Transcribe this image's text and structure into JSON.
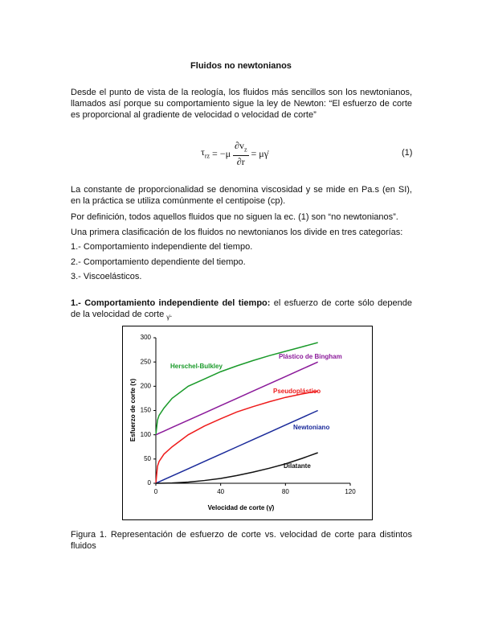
{
  "title": "Fluidos no newtonianos",
  "paragraph_1": "Desde el punto de vista de la reología, los fluidos más sencillos son los newtonianos, llamados así porque su comportamiento sigue la ley de Newton: “El esfuerzo de corte es proporcional al gradiente de velocidad o velocidad de corte”",
  "equation": {
    "lhs": "τ",
    "lhs_sub": "rz",
    "eq1": "= −μ",
    "num": "∂v",
    "num_sub": "z",
    "den": "∂r",
    "rhs": "= μγ̇",
    "number": "(1)"
  },
  "paragraph_2": "La constante de proporcionalidad se denomina viscosidad y se mide en Pa.s (en SI), en la práctica se utiliza comúnmente el centipoise (cp).",
  "paragraph_3": "Por definición, todos aquellos fluidos que no siguen la ec. (1) son “no newtonianos”.",
  "paragraph_4": "Una primera clasificación de los fluidos no newtonianos los divide en tres categorías:",
  "list": [
    "1.- Comportamiento independiente del tiempo.",
    "2.- Comportamiento dependiente del tiempo.",
    "3.- Viscoelásticos."
  ],
  "section": {
    "heading": "1.- Comportamiento independiente del tiempo:",
    "text": " el esfuerzo de corte sólo depende de la velocidad de corte ",
    "symbol": "γ̇",
    "end": "."
  },
  "chart_data": {
    "type": "line",
    "x_label": "Velocidad de corte (γ̇)",
    "y_label": "Esfuerzo de corte (τ)",
    "x": [
      0,
      1,
      2,
      5,
      10,
      20,
      30,
      40,
      50,
      60,
      70,
      80,
      90,
      100
    ],
    "series": [
      {
        "name": "Herschel-Bulkley",
        "color": "#1a9a2a",
        "values": [
          100,
          130,
          140,
          155,
          175,
          200,
          215,
          230,
          242,
          253,
          263,
          272,
          281,
          290
        ]
      },
      {
        "name": "Plástico de Bingham",
        "color": "#8b1a9a",
        "values": [
          100,
          101.5,
          103,
          107.5,
          115,
          130,
          145,
          160,
          175,
          190,
          205,
          220,
          235,
          250
        ]
      },
      {
        "name": "Pseudoplástico",
        "color": "#ee1c1c",
        "values": [
          0,
          35,
          45,
          60,
          75,
          100,
          118,
          133,
          147,
          158,
          168,
          177,
          184,
          190
        ]
      },
      {
        "name": "Newtoniano",
        "color": "#1a2a9a",
        "values": [
          0,
          1.5,
          3,
          7.5,
          15,
          30,
          45,
          60,
          75,
          90,
          105,
          120,
          135,
          150
        ]
      },
      {
        "name": "Dilatante",
        "color": "#111111",
        "values": [
          0,
          0,
          0,
          0.2,
          0.6,
          2.5,
          5.7,
          10,
          16,
          23,
          31,
          40,
          51,
          63
        ]
      }
    ],
    "xlim": [
      0,
      120
    ],
    "xticks": [
      0,
      40,
      80,
      120
    ],
    "ylim": [
      0,
      300
    ],
    "yticks": [
      0,
      50,
      100,
      150,
      200,
      250,
      300
    ],
    "grid": false
  },
  "caption": "Figura 1. Representación de esfuerzo de corte vs. velocidad de corte para distintos fluidos"
}
